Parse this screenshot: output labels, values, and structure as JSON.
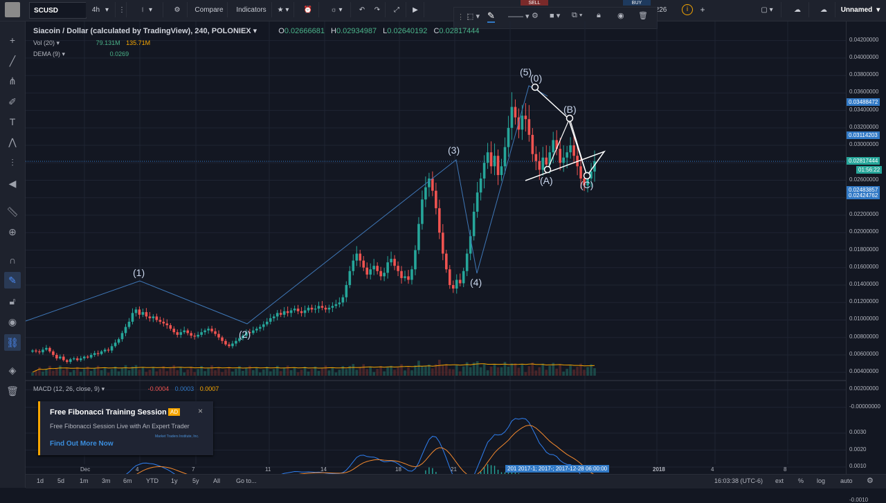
{
  "toolbar": {
    "symbol": "SCUSD",
    "interval": "4h",
    "compare": "Compare",
    "indicators": "Indicators",
    "sell": "SELL",
    "buy": "BUY",
    "price_fragment": "226",
    "layout_name": "Unnamed"
  },
  "legend": {
    "title": "Siacoin / Dollar (calculated by TradingView), 240, POLONIEX",
    "o_label": "O",
    "o": "0.02666681",
    "h_label": "H",
    "h": "0.02934987",
    "l_label": "L",
    "l": "0.02640192",
    "c_label": "C",
    "c": "0.02817444",
    "vol_label": "Vol (20)",
    "vol1": "79.131M",
    "vol2": "135.71M",
    "dema_label": "DEMA (9)",
    "dema": "0.0269",
    "macd_label": "MACD (12, 26, close, 9)",
    "macd1": "-0.0004",
    "macd2": "0.0003",
    "macd3": "0.0007"
  },
  "price_axis": {
    "ticks": [
      "0.04200000",
      "0.04000000",
      "0.03800000",
      "0.03600000",
      "0.03400000",
      "0.03200000",
      "0.03000000",
      "0.02600000",
      "0.02200000",
      "0.02000000",
      "0.01800000",
      "0.01600000",
      "0.01400000",
      "0.01200000",
      "0.01000000",
      "0.00800000",
      "0.00600000",
      "0.00400000",
      "0.00200000",
      "-0.00000000"
    ],
    "tag_high": "0.03488472",
    "tag_b": "0.03114203",
    "tag_last": "0.02817444",
    "countdown": "01:56:22",
    "tag_low1": "0.02483857",
    "tag_low2": "0.02424762"
  },
  "macd_axis": {
    "ticks": [
      "0.0030",
      "0.0020",
      "0.0010",
      "0.0000",
      "-0.0010"
    ]
  },
  "time_axis": {
    "labels": [
      "Dec",
      "4",
      "7",
      "11",
      "14",
      "18",
      "21",
      "2018",
      "4",
      "8"
    ],
    "crosshair": "201  2017-1; 2017-; 2017-12-28 06:00:00"
  },
  "waves": {
    "w1": "(1)",
    "w2": "(2)",
    "w3": "(3)",
    "w4": "(4)",
    "w5": "(5)",
    "w0": "(0)",
    "wa": "(A)",
    "wb": "(B)",
    "wc": "(C)"
  },
  "bottom": {
    "ranges": [
      "1d",
      "5d",
      "1m",
      "3m",
      "6m",
      "YTD",
      "1y",
      "5y",
      "All"
    ],
    "goto": "Go to...",
    "clock": "16:03:38 (UTC-6)",
    "ext": "ext",
    "pct": "%",
    "log": "log",
    "auto": "auto"
  },
  "ad": {
    "title": "Free Fibonacci Training Session",
    "badge": "AD",
    "body": "Free Fibonacci Session Live with An Expert Trader",
    "cta": "Find Out More Now",
    "logo": "Market Traders Institute, Inc."
  },
  "colors": {
    "up": "#26a69a",
    "down": "#ef5350",
    "accent": "#3179c6",
    "warning": "#f7a600"
  },
  "price_series": {
    "closes": [
      0.0065,
      0.0064,
      0.0063,
      0.0066,
      0.0068,
      0.0064,
      0.006,
      0.0056,
      0.0058,
      0.0054,
      0.0052,
      0.0055,
      0.0056,
      0.0054,
      0.0056,
      0.0058,
      0.0057,
      0.006,
      0.0062,
      0.0061,
      0.0064,
      0.0066,
      0.0065,
      0.007,
      0.0074,
      0.0078,
      0.0085,
      0.0092,
      0.0098,
      0.0108,
      0.0112,
      0.0106,
      0.0109,
      0.0104,
      0.0102,
      0.0104,
      0.01,
      0.0098,
      0.0096,
      0.0094,
      0.009,
      0.0086,
      0.0083,
      0.0086,
      0.0088,
      0.0085,
      0.0082,
      0.0081,
      0.0083,
      0.0086,
      0.0088,
      0.009,
      0.0087,
      0.0084,
      0.008,
      0.0076,
      0.0072,
      0.007,
      0.0073,
      0.0076,
      0.0079,
      0.0082,
      0.0086,
      0.0085,
      0.0088,
      0.009,
      0.0092,
      0.0095,
      0.0098,
      0.0102,
      0.0104,
      0.0108,
      0.0106,
      0.011,
      0.0108,
      0.0111,
      0.0113,
      0.011,
      0.0108,
      0.0111,
      0.0114,
      0.0112,
      0.0113,
      0.0116,
      0.0114,
      0.0112,
      0.0114,
      0.0116,
      0.0118,
      0.012,
      0.0126,
      0.014,
      0.0156,
      0.0168,
      0.0176,
      0.0168,
      0.016,
      0.0152,
      0.0158,
      0.0162,
      0.0156,
      0.015,
      0.0154,
      0.0166,
      0.017,
      0.0162,
      0.0156,
      0.0148,
      0.015,
      0.0146,
      0.0158,
      0.018,
      0.021,
      0.0238,
      0.0252,
      0.0262,
      0.0248,
      0.0228,
      0.02,
      0.0176,
      0.0158,
      0.014,
      0.0136,
      0.0146,
      0.0142,
      0.0156,
      0.0176,
      0.0196,
      0.0224,
      0.0246,
      0.0262,
      0.028,
      0.0292,
      0.0276,
      0.0288,
      0.0266,
      0.0276,
      0.0298,
      0.032,
      0.0344,
      0.0332,
      0.0318,
      0.0334,
      0.033,
      0.0312,
      0.029,
      0.0282,
      0.0272,
      0.0286,
      0.0278,
      0.0292,
      0.0306,
      0.0296,
      0.028,
      0.0286,
      0.0292,
      0.03,
      0.0288,
      0.0276,
      0.0262,
      0.0254,
      0.0262,
      0.027,
      0.0282
    ]
  }
}
